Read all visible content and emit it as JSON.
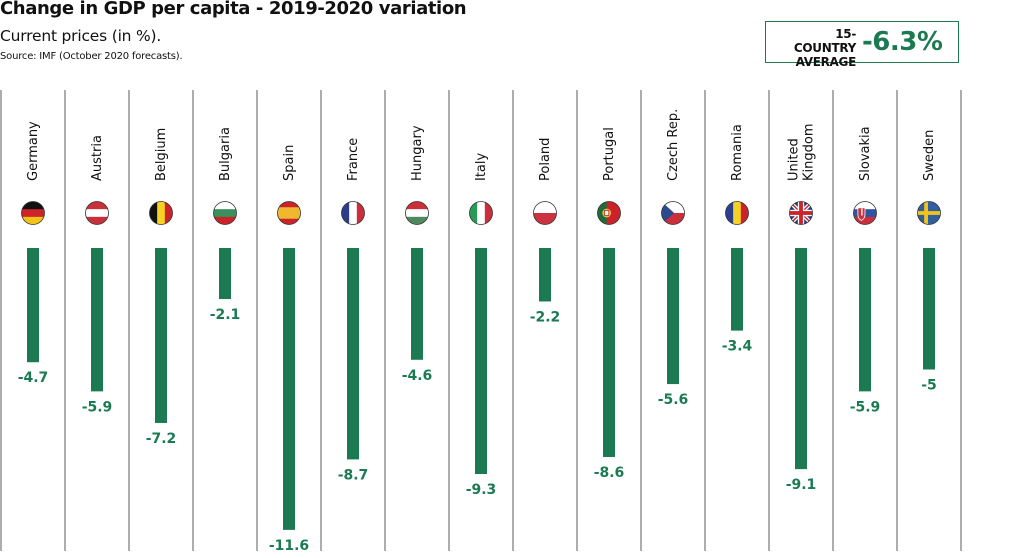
{
  "header": {
    "title": "Change in GDP per capita - 2019-2020 variation",
    "subtitle": "Current prices (in %).",
    "source": "Source: IMF (October 2020 forecasts)."
  },
  "average_box": {
    "label_line1": "15-COUNTRY",
    "label_line2": "AVERAGE",
    "value": "-6.3%"
  },
  "colors": {
    "bar": "#1b7a52",
    "divider": "#8a8a8a",
    "text": "#111111"
  },
  "chart_data": {
    "type": "bar",
    "orientation": "vertical-downward",
    "title": "Change in GDP per capita - 2019-2020 variation",
    "subtitle": "Current prices (in %).",
    "xlabel": "",
    "ylabel": "",
    "ylim": [
      -11.6,
      0
    ],
    "grid": false,
    "legend": "none",
    "categories": [
      "Germany",
      "Austria",
      "Belgium",
      "Bulgaria",
      "Spain",
      "France",
      "Hungary",
      "Italy",
      "Poland",
      "Portugal",
      "Czech Rep.",
      "Romania",
      "United Kingdom",
      "Slovakia",
      "Sweden"
    ],
    "category_label_lines": [
      [
        "Germany"
      ],
      [
        "Austria"
      ],
      [
        "Belgium"
      ],
      [
        "Bulgaria"
      ],
      [
        "Spain"
      ],
      [
        "France"
      ],
      [
        "Hungary"
      ],
      [
        "Italy"
      ],
      [
        "Poland"
      ],
      [
        "Portugal"
      ],
      [
        "Czech Rep."
      ],
      [
        "Romania"
      ],
      [
        "United",
        "Kingdom"
      ],
      [
        "Slovakia"
      ],
      [
        "Sweden"
      ]
    ],
    "values": [
      -4.7,
      -5.9,
      -7.2,
      -2.1,
      -11.6,
      -8.7,
      -4.6,
      -9.3,
      -2.2,
      -8.6,
      -5.6,
      -3.4,
      -9.1,
      -5.9,
      -5
    ],
    "value_labels": [
      "-4.7",
      "-5.9",
      "-7.2",
      "-2.1",
      "-11.6",
      "-8.7",
      "-4.6",
      "-9.3",
      "-2.2",
      "-8.6",
      "-5.6",
      "-3.4",
      "-9.1",
      "-5.9",
      "-5"
    ],
    "flags": [
      "germany-flag",
      "austria-flag",
      "belgium-flag",
      "bulgaria-flag",
      "spain-flag",
      "france-flag",
      "hungary-flag",
      "italy-flag",
      "poland-flag",
      "portugal-flag",
      "czech-republic-flag",
      "romania-flag",
      "united-kingdom-flag",
      "slovakia-flag",
      "sweden-flag"
    ],
    "annotations": [
      "15-COUNTRY AVERAGE -6.3%"
    ]
  }
}
